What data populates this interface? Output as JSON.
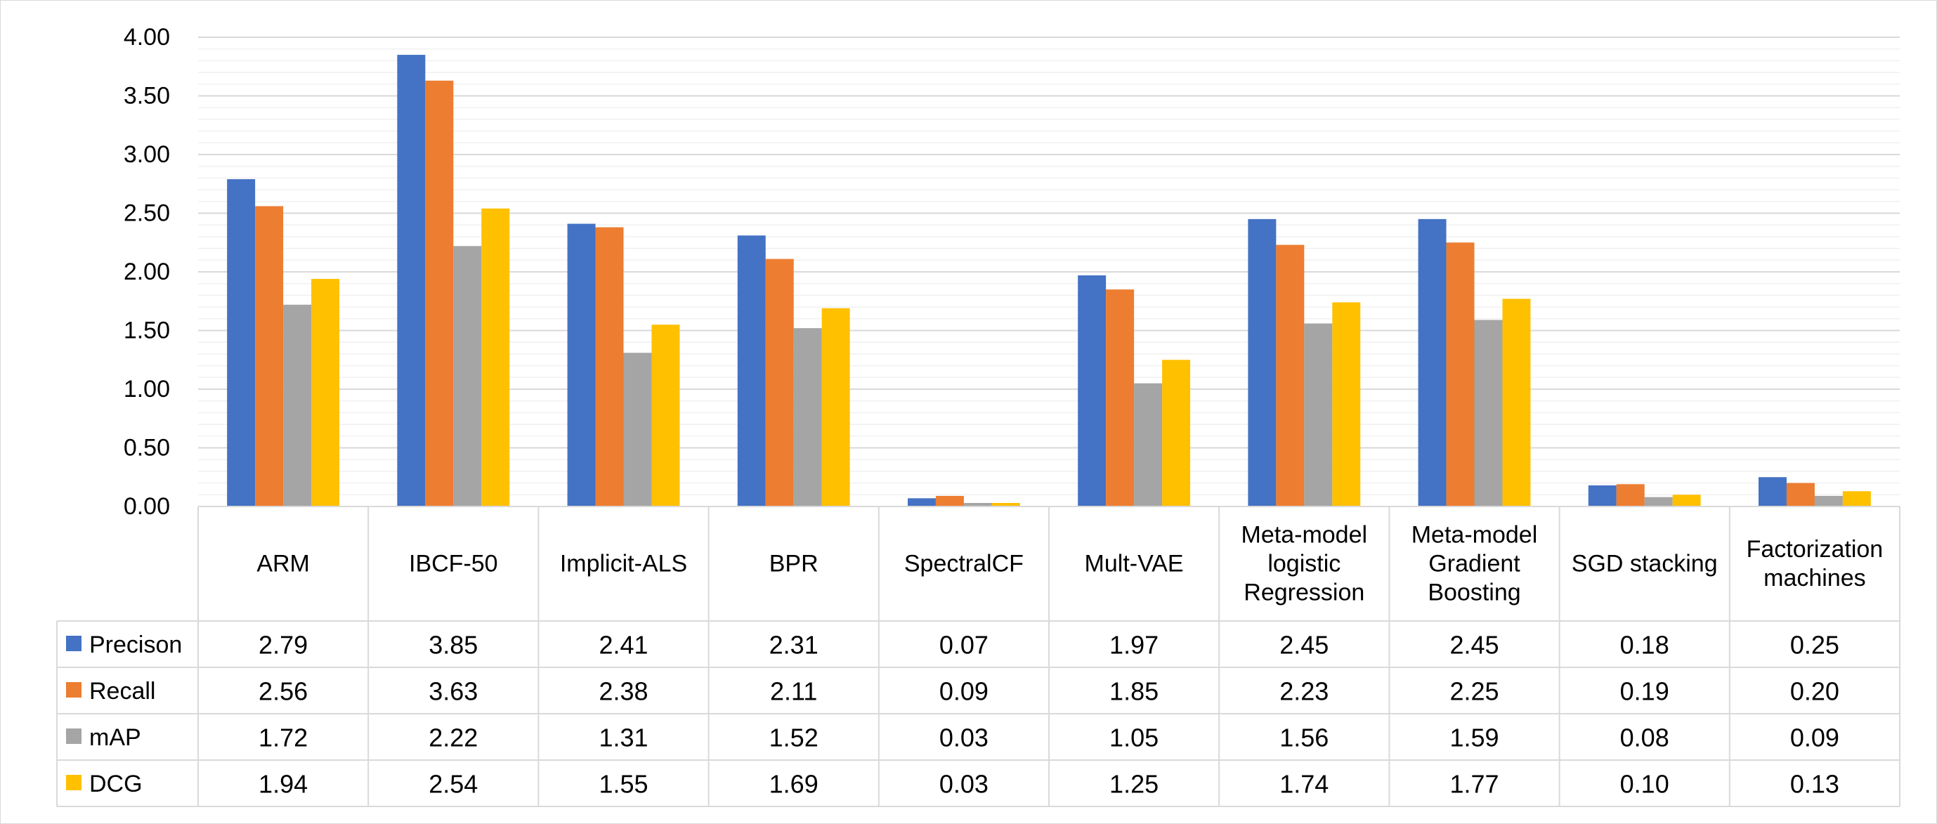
{
  "chart_data": {
    "type": "bar",
    "title": "",
    "xlabel": "",
    "ylabel": "",
    "ylim": [
      0,
      4.0
    ],
    "y_ticks": [
      "0.00",
      "0.50",
      "1.00",
      "1.50",
      "2.00",
      "2.50",
      "3.00",
      "3.50",
      "4.00"
    ],
    "minor_grid_step": 0.1,
    "grid": true,
    "legend": "data-table",
    "categories": [
      [
        "ARM"
      ],
      [
        "IBCF-50"
      ],
      [
        "Implicit-ALS"
      ],
      [
        "BPR"
      ],
      [
        "SpectralCF"
      ],
      [
        "Mult-VAE"
      ],
      [
        "Meta-model",
        "logistic",
        "Regression"
      ],
      [
        "Meta-model",
        "Gradient",
        "Boosting"
      ],
      [
        "SGD stacking"
      ],
      [
        "Factorization",
        "machines"
      ]
    ],
    "series": [
      {
        "name": "Precison",
        "color": "#4472C4",
        "values": [
          2.79,
          3.85,
          2.41,
          2.31,
          0.07,
          1.97,
          2.45,
          2.45,
          0.18,
          0.25
        ],
        "labels": [
          "2.79",
          "3.85",
          "2.41",
          "2.31",
          "0.07",
          "1.97",
          "2.45",
          "2.45",
          "0.18",
          "0.25"
        ]
      },
      {
        "name": "Recall",
        "color": "#ED7D31",
        "values": [
          2.56,
          3.63,
          2.38,
          2.11,
          0.09,
          1.85,
          2.23,
          2.25,
          0.19,
          0.2
        ],
        "labels": [
          "2.56",
          "3.63",
          "2.38",
          "2.11",
          "0.09",
          "1.85",
          "2.23",
          "2.25",
          "0.19",
          "0.20"
        ]
      },
      {
        "name": "mAP",
        "color": "#A5A5A5",
        "values": [
          1.72,
          2.22,
          1.31,
          1.52,
          0.03,
          1.05,
          1.56,
          1.59,
          0.08,
          0.09
        ],
        "labels": [
          "1.72",
          "2.22",
          "1.31",
          "1.52",
          "0.03",
          "1.05",
          "1.56",
          "1.59",
          "0.08",
          "0.09"
        ]
      },
      {
        "name": "DCG",
        "color": "#FFC000",
        "values": [
          1.94,
          2.54,
          1.55,
          1.69,
          0.03,
          1.25,
          1.74,
          1.77,
          0.1,
          0.13
        ],
        "labels": [
          "1.94",
          "2.54",
          "1.55",
          "1.69",
          "0.03",
          "1.25",
          "1.74",
          "1.77",
          "0.10",
          "0.13"
        ]
      }
    ]
  }
}
